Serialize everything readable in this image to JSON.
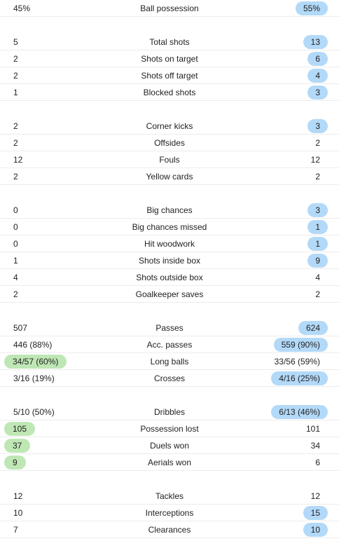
{
  "colors": {
    "home_highlight": "#bfe7b5",
    "away_highlight": "#b3d9f8",
    "divider": "#ececec"
  },
  "groups": [
    {
      "rows": [
        {
          "label": "Ball possession",
          "home": "45%",
          "away": "55%",
          "highlight": "away"
        }
      ]
    },
    {
      "rows": [
        {
          "label": "Total shots",
          "home": "5",
          "away": "13",
          "highlight": "away"
        },
        {
          "label": "Shots on target",
          "home": "2",
          "away": "6",
          "highlight": "away"
        },
        {
          "label": "Shots off target",
          "home": "2",
          "away": "4",
          "highlight": "away"
        },
        {
          "label": "Blocked shots",
          "home": "1",
          "away": "3",
          "highlight": "away"
        }
      ]
    },
    {
      "rows": [
        {
          "label": "Corner kicks",
          "home": "2",
          "away": "3",
          "highlight": "away"
        },
        {
          "label": "Offsides",
          "home": "2",
          "away": "2",
          "highlight": "none"
        },
        {
          "label": "Fouls",
          "home": "12",
          "away": "12",
          "highlight": "none"
        },
        {
          "label": "Yellow cards",
          "home": "2",
          "away": "2",
          "highlight": "none"
        }
      ]
    },
    {
      "rows": [
        {
          "label": "Big chances",
          "home": "0",
          "away": "3",
          "highlight": "away"
        },
        {
          "label": "Big chances missed",
          "home": "0",
          "away": "1",
          "highlight": "away"
        },
        {
          "label": "Hit woodwork",
          "home": "0",
          "away": "1",
          "highlight": "away"
        },
        {
          "label": "Shots inside box",
          "home": "1",
          "away": "9",
          "highlight": "away"
        },
        {
          "label": "Shots outside box",
          "home": "4",
          "away": "4",
          "highlight": "none"
        },
        {
          "label": "Goalkeeper saves",
          "home": "2",
          "away": "2",
          "highlight": "none"
        }
      ]
    },
    {
      "rows": [
        {
          "label": "Passes",
          "home": "507",
          "away": "624",
          "highlight": "away"
        },
        {
          "label": "Acc. passes",
          "home": "446 (88%)",
          "away": "559 (90%)",
          "highlight": "away"
        },
        {
          "label": "Long balls",
          "home": "34/57 (60%)",
          "away": "33/56 (59%)",
          "highlight": "home"
        },
        {
          "label": "Crosses",
          "home": "3/16 (19%)",
          "away": "4/16 (25%)",
          "highlight": "away"
        }
      ]
    },
    {
      "rows": [
        {
          "label": "Dribbles",
          "home": "5/10 (50%)",
          "away": "6/13 (46%)",
          "highlight": "away"
        },
        {
          "label": "Possession lost",
          "home": "105",
          "away": "101",
          "highlight": "home"
        },
        {
          "label": "Duels won",
          "home": "37",
          "away": "34",
          "highlight": "home"
        },
        {
          "label": "Aerials won",
          "home": "9",
          "away": "6",
          "highlight": "home"
        }
      ]
    },
    {
      "rows": [
        {
          "label": "Tackles",
          "home": "12",
          "away": "12",
          "highlight": "none"
        },
        {
          "label": "Interceptions",
          "home": "10",
          "away": "15",
          "highlight": "away"
        },
        {
          "label": "Clearances",
          "home": "7",
          "away": "10",
          "highlight": "away"
        }
      ]
    }
  ]
}
